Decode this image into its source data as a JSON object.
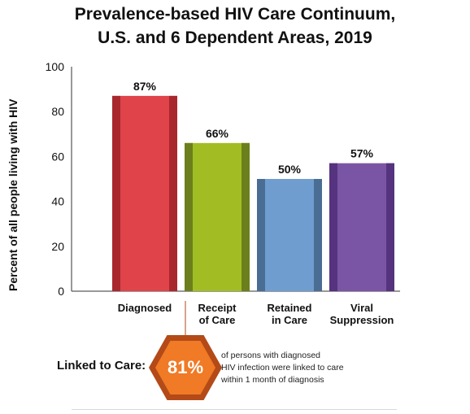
{
  "chart_data": {
    "type": "bar",
    "title": "Prevalence-based HIV Care Continuum,",
    "subtitle": "U.S. and 6 Dependent Areas, 2019",
    "ylabel": "Percent of all people living with HIV",
    "ylim": [
      0,
      100
    ],
    "yticks": [
      0,
      20,
      40,
      60,
      80,
      100
    ],
    "categories": [
      [
        "Diagnosed"
      ],
      [
        "Receipt",
        "of Care"
      ],
      [
        "Retained",
        "in Care"
      ],
      [
        "Viral",
        "Suppression"
      ]
    ],
    "values": [
      87,
      66,
      50,
      57
    ],
    "value_labels": [
      "87%",
      "66%",
      "50%",
      "57%"
    ],
    "colors": [
      {
        "face": "#e0434a",
        "edge": "#a8282e"
      },
      {
        "face": "#a2bd23",
        "edge": "#6b7f1c"
      },
      {
        "face": "#6f9dd0",
        "edge": "#4a6d93"
      },
      {
        "face": "#7b55a5",
        "edge": "#55337e"
      }
    ],
    "grid": false
  },
  "callout": {
    "label": "Linked to Care:",
    "value": "81%",
    "note_lines": [
      "of persons with diagnosed",
      "HIV infection were linked to care",
      "within 1 month of diagnosis"
    ],
    "colors": {
      "outer": "#b34a17",
      "inner": "#f07a25"
    }
  }
}
